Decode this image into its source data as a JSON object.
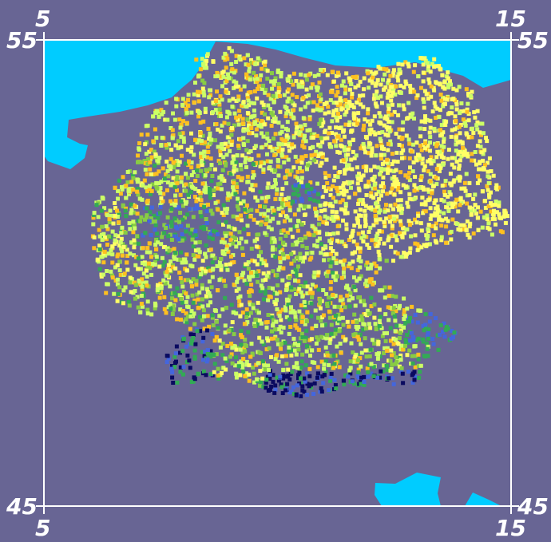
{
  "axes": {
    "top": [
      "5",
      "15"
    ],
    "bottom": [
      "5",
      "15"
    ],
    "left": [
      "55",
      "45"
    ],
    "right": [
      "55",
      "45"
    ],
    "lon_range": [
      5,
      15
    ],
    "lat_range": [
      45,
      55
    ]
  },
  "colors": {
    "background": "#686594",
    "water": "#00ccff",
    "frame": "#ffffff",
    "scale": [
      "#ffff66",
      "#ffc020",
      "#ccff66",
      "#88cc44",
      "#33aa55",
      "#4466dd",
      "#0a0a60"
    ]
  }
}
